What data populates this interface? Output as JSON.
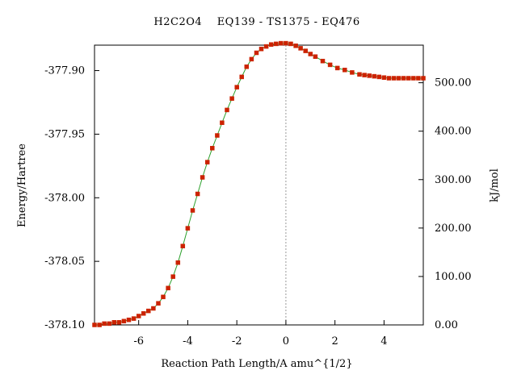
{
  "chart_data": {
    "type": "line",
    "title": "H2C2O4    EQ139 - TS1375 - EQ476",
    "xlabel": "Reaction Path Length/A amu^{1/2}",
    "ylabel": "Energy/Hartree",
    "y2label": "kJ/mol",
    "xlim": [
      -7.8,
      5.6
    ],
    "ylim": [
      -378.1,
      -377.88
    ],
    "y2lim": [
      0,
      577.6
    ],
    "xticks": [
      -6,
      -4,
      -2,
      0,
      2,
      4
    ],
    "xtick_labels": [
      "-6",
      "-4",
      "-2",
      "0",
      "2",
      "4"
    ],
    "yticks": [
      -378.1,
      -378.05,
      -378.0,
      -377.95,
      -377.9
    ],
    "ytick_labels": [
      "-378.10",
      "-378.05",
      "-378.00",
      "-377.95",
      "-377.90"
    ],
    "y2ticks": [
      0,
      100,
      200,
      300,
      400,
      500
    ],
    "y2tick_labels": [
      "0.00",
      "100.00",
      "200.00",
      "300.00",
      "400.00",
      "500.00"
    ],
    "grid": false,
    "ts_marker_x": 0,
    "colors": {
      "line": "#2ca02c",
      "marker": "#cc2200",
      "ts_line": "#999999"
    },
    "series": [
      {
        "x": [
          -7.8,
          -7.6,
          -7.4,
          -7.2,
          -7.0,
          -6.8,
          -6.6,
          -6.4,
          -6.2,
          -6.0,
          -5.8,
          -5.6,
          -5.4,
          -5.2,
          -5.0,
          -4.8,
          -4.6,
          -4.4,
          -4.2,
          -4.0,
          -3.8,
          -3.6,
          -3.4,
          -3.2,
          -3.0,
          -2.8,
          -2.6,
          -2.4,
          -2.2,
          -2.0,
          -1.8,
          -1.6,
          -1.4,
          -1.2,
          -1.0,
          -0.8,
          -0.6,
          -0.4,
          -0.2,
          0.0,
          0.2,
          0.4,
          0.6,
          0.8,
          1.0,
          1.2,
          1.5,
          1.8,
          2.1,
          2.4,
          2.7,
          3.0,
          3.2,
          3.4,
          3.6,
          3.8,
          4.0,
          4.2,
          4.4,
          4.6,
          4.8,
          5.0,
          5.2,
          5.4,
          5.6
        ],
        "y": [
          -378.1,
          -378.1,
          -378.099,
          -378.099,
          -378.098,
          -378.098,
          -378.097,
          -378.096,
          -378.095,
          -378.093,
          -378.091,
          -378.089,
          -378.087,
          -378.083,
          -378.078,
          -378.071,
          -378.062,
          -378.051,
          -378.038,
          -378.024,
          -378.01,
          -377.997,
          -377.984,
          -377.972,
          -377.961,
          -377.951,
          -377.941,
          -377.931,
          -377.922,
          -377.913,
          -377.905,
          -377.897,
          -377.891,
          -377.886,
          -377.883,
          -377.881,
          -377.8795,
          -377.879,
          -377.8785,
          -377.8785,
          -377.879,
          -377.8805,
          -377.8825,
          -377.8845,
          -377.887,
          -377.889,
          -377.8925,
          -377.8955,
          -377.898,
          -377.8995,
          -377.9015,
          -377.903,
          -377.9035,
          -377.904,
          -377.9045,
          -377.905,
          -377.9055,
          -377.906,
          -377.906,
          -377.906,
          -377.906,
          -377.906,
          -377.906,
          -377.906,
          -377.906
        ]
      }
    ]
  }
}
